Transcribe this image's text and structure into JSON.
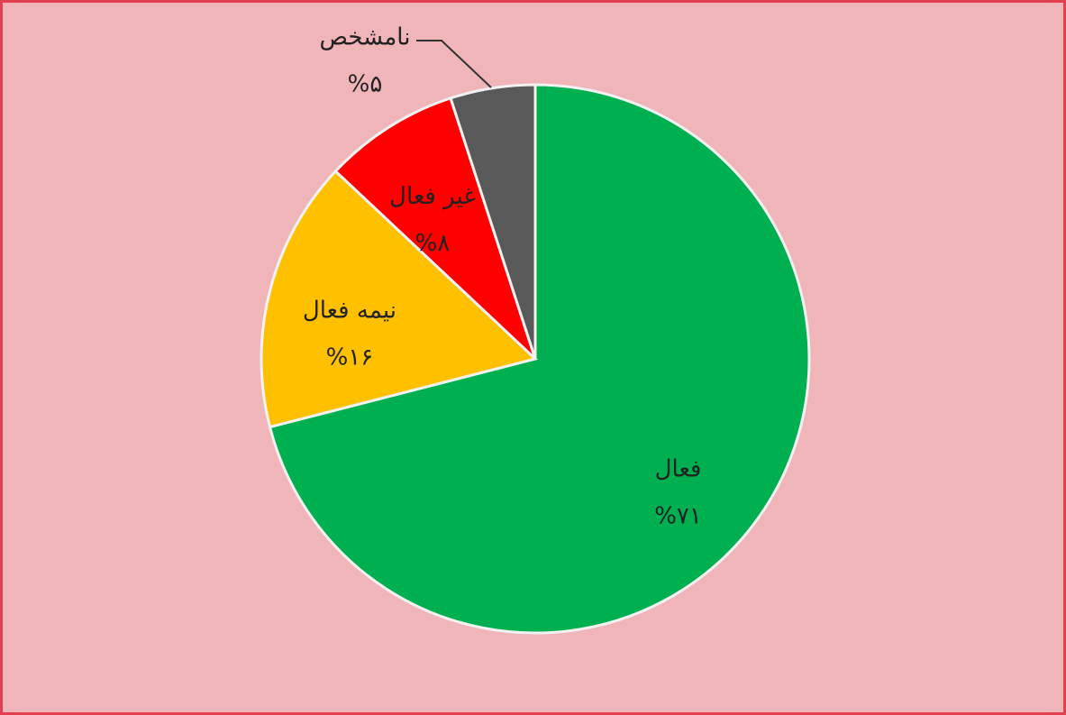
{
  "chart_data": {
    "type": "pie",
    "categories": [
      "فعال",
      "نیمه فعال",
      "غیر فعال",
      "نامشخص"
    ],
    "values": [
      71,
      16,
      8,
      5
    ],
    "value_labels": [
      "%۷۱",
      "%۱۶",
      "%۸",
      "%۵"
    ],
    "colors": [
      "#00b050",
      "#ffc000",
      "#ff0000",
      "#595959"
    ]
  }
}
